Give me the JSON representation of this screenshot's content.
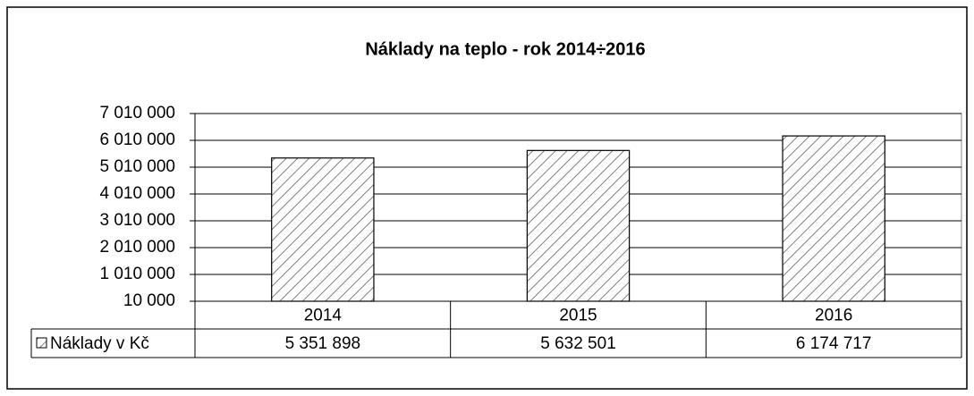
{
  "chart_data": {
    "type": "bar",
    "title": "Náklady na teplo  - rok 2014÷2016",
    "categories": [
      "2014",
      "2015",
      "2016"
    ],
    "series": [
      {
        "name": "Náklady v Kč",
        "color": "#808080",
        "values": [
          5351898,
          5632501,
          6174717
        ],
        "value_labels": [
          "5 351 898",
          "5 632 501",
          "6 174 717"
        ]
      }
    ],
    "ylim": [
      10000,
      7010000
    ],
    "yticks": [
      {
        "value": 10000,
        "label": "10 000"
      },
      {
        "value": 1010000,
        "label": "1 010 000"
      },
      {
        "value": 2010000,
        "label": "2 010 000"
      },
      {
        "value": 3010000,
        "label": "3 010 000"
      },
      {
        "value": 4010000,
        "label": "4 010 000"
      },
      {
        "value": 5010000,
        "label": "5 010 000"
      },
      {
        "value": 6010000,
        "label": "6 010 000"
      },
      {
        "value": 7010000,
        "label": "7 010 000"
      }
    ],
    "grid": true,
    "data_table": true
  }
}
